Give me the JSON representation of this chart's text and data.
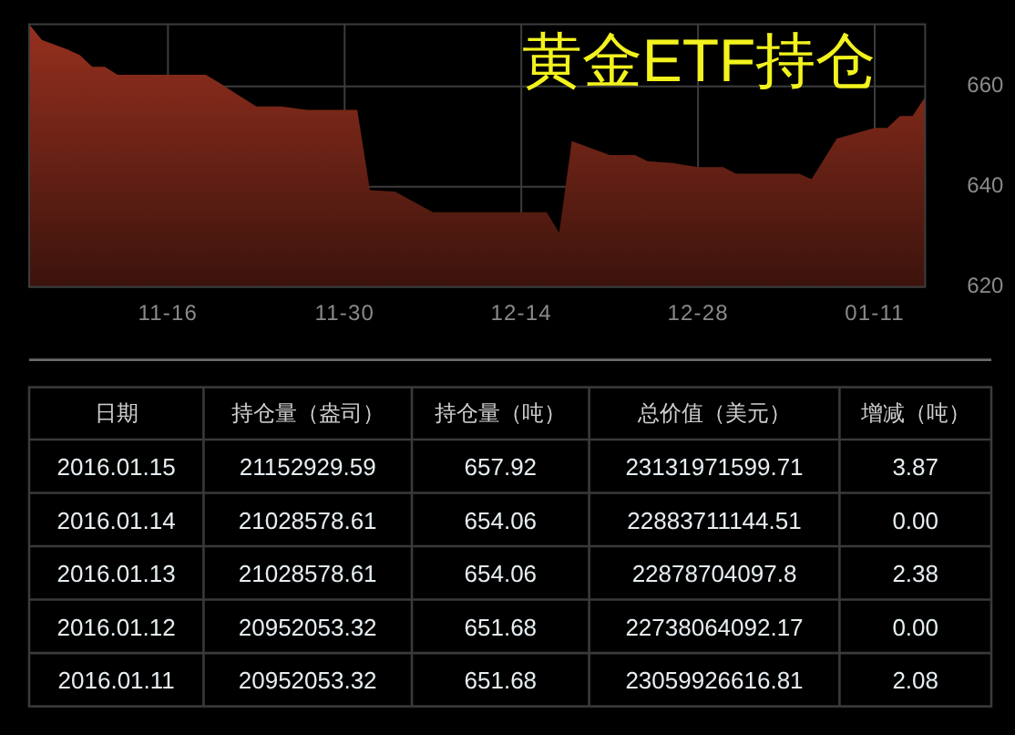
{
  "chart_data": [
    {
      "type": "area",
      "title": "黄金ETF持仓",
      "x": [
        "2015-11-05",
        "2015-11-06",
        "2015-11-08",
        "2015-11-09",
        "2015-11-10",
        "2015-11-11",
        "2015-11-12",
        "2015-11-19",
        "2015-11-20",
        "2015-11-23",
        "2015-11-25",
        "2015-11-27",
        "2015-12-01",
        "2015-12-02",
        "2015-12-04",
        "2015-12-07",
        "2015-12-16",
        "2015-12-17",
        "2015-12-18",
        "2015-12-21",
        "2015-12-23",
        "2015-12-24",
        "2015-12-26",
        "2015-12-28",
        "2015-12-30",
        "2015-12-31",
        "2016-01-05",
        "2016-01-06",
        "2016-01-08",
        "2016-01-11",
        "2016-01-12",
        "2016-01-13",
        "2016-01-14",
        "2016-01-15"
      ],
      "values": [
        672.4,
        669.3,
        667.4,
        666.3,
        663.9,
        663.9,
        662.3,
        662.3,
        660.8,
        656.0,
        656.0,
        655.3,
        655.3,
        639.3,
        639.0,
        634.9,
        634.9,
        630.8,
        649.1,
        646.3,
        646.3,
        645.1,
        644.7,
        643.9,
        643.9,
        642.6,
        642.6,
        641.5,
        649.6,
        651.7,
        651.7,
        654.1,
        654.1,
        657.9
      ],
      "color": "#96301e",
      "xlim": [
        "2015-11-05",
        "2016-01-15"
      ],
      "xticks": [
        {
          "value": "2015-11-16",
          "label": "11-16"
        },
        {
          "value": "2015-11-30",
          "label": "11-30"
        },
        {
          "value": "2015-12-14",
          "label": "12-14"
        },
        {
          "value": "2015-12-28",
          "label": "12-28"
        },
        {
          "value": "2016-01-11",
          "label": "01-11"
        }
      ],
      "ylim": [
        620,
        672.4
      ],
      "yticks": [
        620,
        640,
        660
      ],
      "grid": true
    },
    {
      "type": "other",
      "ylabel": "日期",
      "categories": [
        "持仓量（盎司）",
        "持仓量（吨）",
        "总价值（美元）",
        "增减（吨）"
      ],
      "y_categories": [
        "2016.01.15",
        "2016.01.14",
        "2016.01.13",
        "2016.01.12",
        "2016.01.11"
      ],
      "cell_labels": [
        [
          "21152929.59",
          "657.92",
          "23131971599.71",
          "3.87"
        ],
        [
          "21028578.61",
          "654.06",
          "22883711144.51",
          "0.00"
        ],
        [
          "21028578.61",
          "654.06",
          "22878704097.8",
          "2.38"
        ],
        [
          "20952053.32",
          "651.68",
          "22738064092.17",
          "0.00"
        ],
        [
          "20952053.32",
          "651.68",
          "23059926616.81",
          "2.08"
        ]
      ]
    }
  ]
}
